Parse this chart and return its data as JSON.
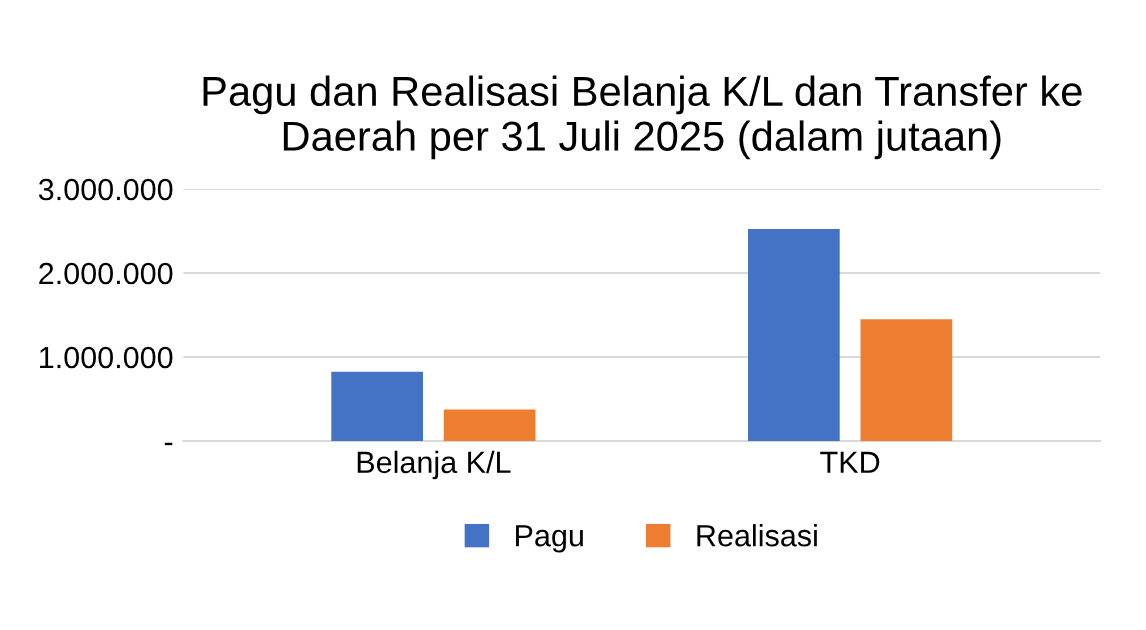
{
  "chart_data": {
    "type": "bar",
    "title": "Pagu dan Realisasi Belanja K/L dan Transfer ke Daerah per 31 Juli 2025 (dalam jutaan)",
    "categories": [
      "Belanja K/L",
      "TKD"
    ],
    "series": [
      {
        "name": "Pagu",
        "color": "#4472c4",
        "values": [
          825000,
          2525000
        ]
      },
      {
        "name": "Realisasi",
        "color": "#ed7d31",
        "values": [
          375000,
          1450000
        ]
      }
    ],
    "ylim": [
      0,
      3000000
    ],
    "yticks": [
      {
        "value": 0,
        "label": "-"
      },
      {
        "value": 1000000,
        "label": "1.000.000"
      },
      {
        "value": 2000000,
        "label": "2.000.000"
      },
      {
        "value": 3000000,
        "label": "3.000.000"
      }
    ],
    "grid": "y",
    "legend": "bottom"
  }
}
